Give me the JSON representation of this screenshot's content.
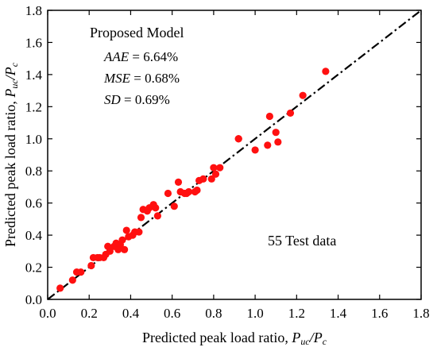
{
  "chart_data": {
    "type": "scatter",
    "xlabel": "Predicted peak load ratio, ",
    "xlabel_math": "P",
    "xlabel_sub": "uc",
    "xlabel_div": "/",
    "xlabel_math2": "P",
    "xlabel_sub2": "c",
    "ylabel": "Predicted peak load ratio, ",
    "ylabel_math": "P",
    "ylabel_sub": "uc",
    "ylabel_div": "/",
    "ylabel_math2": "P",
    "ylabel_sub2": "c",
    "xlim": [
      0,
      1.8
    ],
    "ylim": [
      0,
      1.8
    ],
    "xticks": [
      "0.0",
      "0.2",
      "0.4",
      "0.6",
      "0.8",
      "1.0",
      "1.2",
      "1.4",
      "1.6",
      "1.8"
    ],
    "yticks": [
      "0.0",
      "0.2",
      "0.4",
      "0.6",
      "0.8",
      "1.0",
      "1.2",
      "1.4",
      "1.6",
      "1.8"
    ],
    "grid": false,
    "reference_line": {
      "style": "dash-dot",
      "color": "#000000",
      "from": [
        0,
        0
      ],
      "to": [
        1.8,
        1.8
      ]
    },
    "marker_color": "#ff1010",
    "annotations": {
      "title": "Proposed Model",
      "stats": [
        {
          "name": "AAE",
          "eq": " = 6.64%"
        },
        {
          "name": "MSE",
          "eq": " = 0.68%"
        },
        {
          "name": "SD",
          "eq": " = 0.69%"
        }
      ],
      "count_label": "55 Test data"
    },
    "series": [
      {
        "points": [
          [
            0.06,
            0.07
          ],
          [
            0.12,
            0.12
          ],
          [
            0.14,
            0.17
          ],
          [
            0.16,
            0.17
          ],
          [
            0.21,
            0.21
          ],
          [
            0.22,
            0.26
          ],
          [
            0.24,
            0.26
          ],
          [
            0.27,
            0.26
          ],
          [
            0.28,
            0.28
          ],
          [
            0.29,
            0.33
          ],
          [
            0.3,
            0.3
          ],
          [
            0.32,
            0.33
          ],
          [
            0.33,
            0.35
          ],
          [
            0.34,
            0.31
          ],
          [
            0.35,
            0.34
          ],
          [
            0.36,
            0.37
          ],
          [
            0.37,
            0.31
          ],
          [
            0.38,
            0.43
          ],
          [
            0.39,
            0.39
          ],
          [
            0.41,
            0.4
          ],
          [
            0.42,
            0.42
          ],
          [
            0.44,
            0.42
          ],
          [
            0.45,
            0.51
          ],
          [
            0.46,
            0.56
          ],
          [
            0.49,
            0.57
          ],
          [
            0.51,
            0.59
          ],
          [
            0.52,
            0.57
          ],
          [
            0.53,
            0.52
          ],
          [
            0.58,
            0.66
          ],
          [
            0.61,
            0.58
          ],
          [
            0.63,
            0.73
          ],
          [
            0.64,
            0.67
          ],
          [
            0.66,
            0.66
          ],
          [
            0.67,
            0.66
          ],
          [
            0.71,
            0.67
          ],
          [
            0.72,
            0.68
          ],
          [
            0.73,
            0.74
          ],
          [
            0.75,
            0.75
          ],
          [
            0.79,
            0.75
          ],
          [
            0.8,
            0.82
          ],
          [
            0.81,
            0.78
          ],
          [
            0.83,
            0.82
          ],
          [
            0.92,
            1.0
          ],
          [
            1.0,
            0.93
          ],
          [
            1.06,
            0.96
          ],
          [
            1.07,
            1.14
          ],
          [
            1.1,
            1.04
          ],
          [
            1.11,
            0.98
          ],
          [
            1.17,
            1.16
          ],
          [
            1.23,
            1.27
          ],
          [
            1.34,
            1.42
          ],
          [
            0.48,
            0.55
          ],
          [
            0.25,
            0.26
          ],
          [
            0.68,
            0.67
          ],
          [
            0.92,
            1.0
          ]
        ]
      }
    ]
  }
}
